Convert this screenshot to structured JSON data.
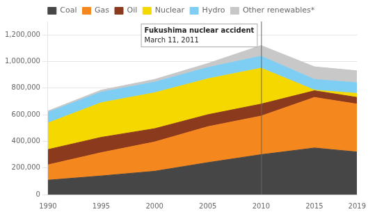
{
  "chart_data": {
    "type": "area",
    "stacked": true,
    "x": [
      1990,
      1995,
      2000,
      2005,
      2010,
      2015,
      2019
    ],
    "series": [
      {
        "name": "Coal",
        "color": "#464646",
        "values": [
          108000,
          140000,
          175000,
          240000,
          300000,
          350000,
          320000
        ]
      },
      {
        "name": "Gas",
        "color": "#f5871f",
        "values": [
          115000,
          175000,
          220000,
          270000,
          290000,
          380000,
          360000
        ]
      },
      {
        "name": "Oil",
        "color": "#8b3a1e",
        "values": [
          115000,
          115000,
          100000,
          90000,
          90000,
          50000,
          50000
        ]
      },
      {
        "name": "Nuclear",
        "color": "#f5d800",
        "values": [
          200000,
          260000,
          270000,
          270000,
          270000,
          5000,
          30000
        ]
      },
      {
        "name": "Hydro",
        "color": "#7ecef4",
        "values": [
          80000,
          80000,
          80000,
          85000,
          90000,
          80000,
          80000
        ]
      },
      {
        "name": "Other renewables*",
        "color": "#c8c8c8",
        "values": [
          10000,
          15000,
          20000,
          30000,
          80000,
          95000,
          90000
        ]
      }
    ],
    "annotations": [
      {
        "x": 2010,
        "title": "Fukushima nuclear accident",
        "text": "March 11, 2011"
      }
    ],
    "xlim": [
      1990,
      2019
    ],
    "xticks": [
      1990,
      1995,
      2000,
      2005,
      2010,
      2015,
      2019
    ],
    "ylim": [
      0,
      1300000
    ],
    "yticks": [
      0,
      {
        "value": 200000,
        "label": "200,000"
      },
      {
        "value": 400000,
        "label": "400,000"
      },
      {
        "value": 600000,
        "label": "600,000"
      },
      {
        "value": 800000,
        "label": "800,000"
      },
      {
        "value": 1000000,
        "label": "1,000,000"
      },
      {
        "value": 1200000,
        "label": "1,200,000"
      }
    ],
    "grid": "y",
    "legend": "top"
  }
}
